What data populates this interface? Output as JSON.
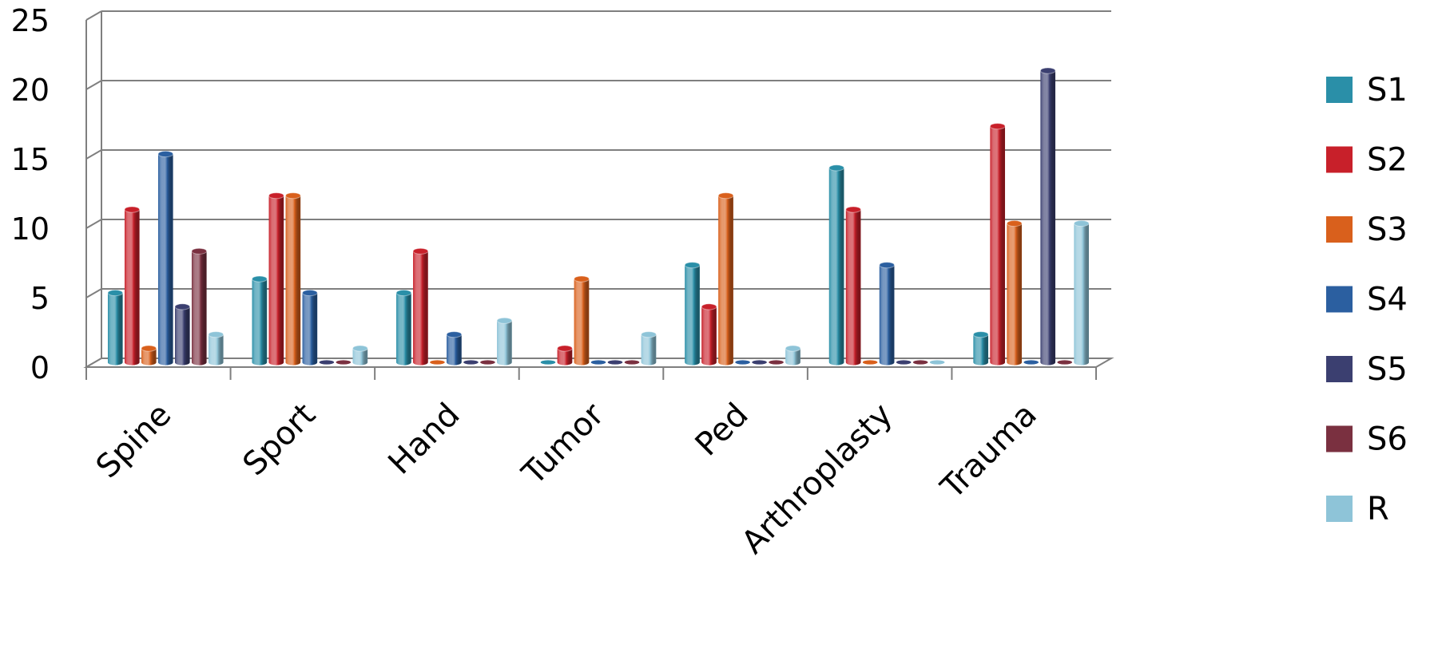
{
  "chart_data": {
    "type": "bar",
    "title": "",
    "xlabel": "",
    "ylabel": "",
    "ylim": [
      0,
      25
    ],
    "yticks": [
      0,
      5,
      10,
      15,
      20,
      25
    ],
    "grid": true,
    "legend_position": "right",
    "categories": [
      "Spine",
      "Sport",
      "Hand",
      "Tumor",
      "Ped",
      "Arthroplasty",
      "Trauma"
    ],
    "series": [
      {
        "name": "S1",
        "color": "#2a8fa8",
        "values": [
          5,
          6,
          5,
          0,
          7,
          14,
          2
        ]
      },
      {
        "name": "S2",
        "color": "#c8202a",
        "values": [
          11,
          12,
          8,
          1,
          4,
          11,
          17
        ]
      },
      {
        "name": "S3",
        "color": "#d9601c",
        "values": [
          1,
          12,
          0,
          6,
          12,
          0,
          10
        ]
      },
      {
        "name": "S4",
        "color": "#2b5fa0",
        "values": [
          15,
          5,
          2,
          0,
          0,
          7,
          0
        ]
      },
      {
        "name": "S5",
        "color": "#3b3f70",
        "values": [
          4,
          0,
          0,
          0,
          0,
          0,
          21
        ]
      },
      {
        "name": "S6",
        "color": "#7a3040",
        "values": [
          8,
          0,
          0,
          0,
          0,
          0,
          0
        ]
      },
      {
        "name": "R",
        "color": "#8ec4d8",
        "values": [
          2,
          1,
          3,
          2,
          1,
          0,
          10
        ]
      }
    ]
  }
}
